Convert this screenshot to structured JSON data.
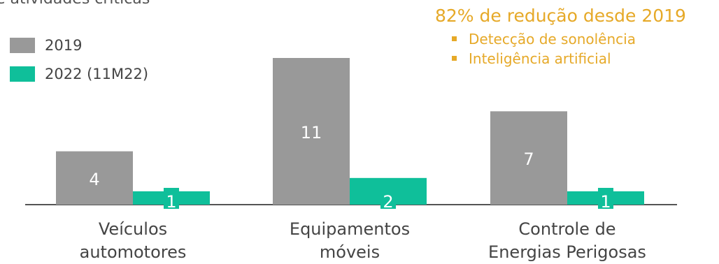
{
  "header_fragment": "e atividades críticas",
  "callout": {
    "title": "82% de redução desde 2019",
    "items": [
      "Detecção de sonolência",
      "Inteligência artificial"
    ]
  },
  "colors": {
    "series_2019": "#999999",
    "series_2022": "#0FBF9A",
    "accent": "#E6A928",
    "axis": "#555555"
  },
  "chart_data": {
    "type": "bar",
    "categories": [
      "Veículos automotores",
      "Equipamentos móveis",
      "Controle de Energias Perigosas"
    ],
    "category_lines": [
      [
        "Veículos",
        "automotores"
      ],
      [
        "Equipamentos",
        "móveis"
      ],
      [
        "Controle de",
        "Energias Perigosas"
      ]
    ],
    "series": [
      {
        "name": "2019",
        "values": [
          4,
          11,
          7
        ]
      },
      {
        "name": "2022 (11M22)",
        "values": [
          1,
          2,
          1
        ]
      }
    ],
    "legend": "top-left",
    "grid": false,
    "ylim": [
      0,
      11
    ],
    "data_labels": true
  }
}
